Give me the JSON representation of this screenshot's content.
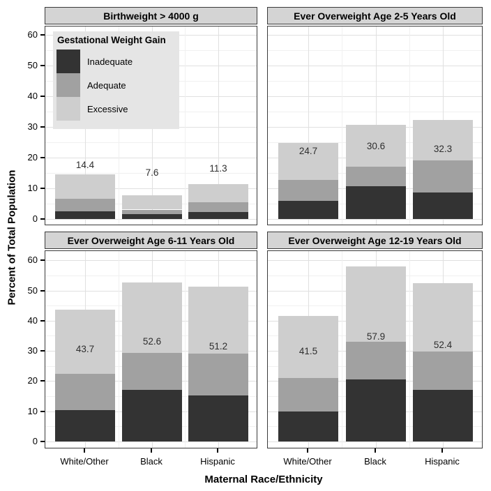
{
  "figure": {
    "y_axis_title": "Percent of Total Population",
    "x_axis_title": "Maternal Race/Ethnicity"
  },
  "legend": {
    "title": "Gestational Weight Gain",
    "items": [
      {
        "label": "Inadequate",
        "color": "#333333"
      },
      {
        "label": "Adequate",
        "color": "#a1a1a1"
      },
      {
        "label": "Excessive",
        "color": "#cecece"
      }
    ]
  },
  "colors": {
    "inadequate": "#333333",
    "adequate": "#a1a1a1",
    "excessive": "#cecece",
    "strip_background": "#d4d4d4",
    "legend_background": "#e5e5e5",
    "panel_background": "#ffffff",
    "panel_border": "#3a3a3a",
    "gridline_major": "#e0e0e0",
    "gridline_minor": "#f0f0f0",
    "text": "#000000"
  },
  "chart_data": {
    "type": "bar",
    "stacked": true,
    "facets": "2x2 grid",
    "categories": [
      "White/Other",
      "Black",
      "Hispanic"
    ],
    "series_names": [
      "Inadequate",
      "Adequate",
      "Excessive"
    ],
    "xlabel": "Maternal Race/Ethnicity",
    "ylabel": "Percent of Total Population",
    "ylim": [
      0,
      63
    ],
    "y_ticks": [
      0,
      10,
      20,
      30,
      40,
      50,
      60
    ],
    "grid": "major and minor horizontal + vertical, light gray on white",
    "legend_position": "inside top-left facet",
    "panels": [
      {
        "title": "Birthweight > 4000 g",
        "totals": [
          14.4,
          7.6,
          11.3
        ],
        "series": [
          {
            "name": "Inadequate",
            "values": [
              2.4,
              1.5,
              2.3
            ]
          },
          {
            "name": "Adequate",
            "values": [
              4.2,
              1.5,
              3.1
            ]
          },
          {
            "name": "Excessive",
            "values": [
              7.8,
              4.6,
              5.9
            ]
          }
        ],
        "label_y": [
          17.4,
          14.9,
          16.3
        ]
      },
      {
        "title": "Ever Overweight Age 2-5 Years Old",
        "totals": [
          24.7,
          30.6,
          32.3
        ],
        "series": [
          {
            "name": "Inadequate",
            "values": [
              5.8,
              10.6,
              8.6
            ]
          },
          {
            "name": "Adequate",
            "values": [
              6.8,
              6.3,
              10.4
            ]
          },
          {
            "name": "Excessive",
            "values": [
              12.1,
              13.7,
              13.3
            ]
          }
        ],
        "label_y": [
          22.0,
          23.6,
          22.7
        ]
      },
      {
        "title": "Ever Overweight Age 6-11 Years Old",
        "totals": [
          43.7,
          52.6,
          51.2
        ],
        "series": [
          {
            "name": "Inadequate",
            "values": [
              10.3,
              17.0,
              15.3
            ]
          },
          {
            "name": "Adequate",
            "values": [
              12.1,
              12.3,
              13.7
            ]
          },
          {
            "name": "Excessive",
            "values": [
              21.3,
              23.3,
              22.2
            ]
          }
        ],
        "label_y": [
          30.5,
          33.0,
          31.4
        ]
      },
      {
        "title": "Ever Overweight Age 12-19 Years Old",
        "totals": [
          41.5,
          57.9,
          52.4
        ],
        "series": [
          {
            "name": "Inadequate",
            "values": [
              9.9,
              20.6,
              17.0
            ]
          },
          {
            "name": "Adequate",
            "values": [
              11.2,
              12.4,
              12.9
            ]
          },
          {
            "name": "Excessive",
            "values": [
              20.4,
              24.9,
              22.5
            ]
          }
        ],
        "label_y": [
          29.8,
          34.6,
          31.9
        ]
      }
    ]
  }
}
